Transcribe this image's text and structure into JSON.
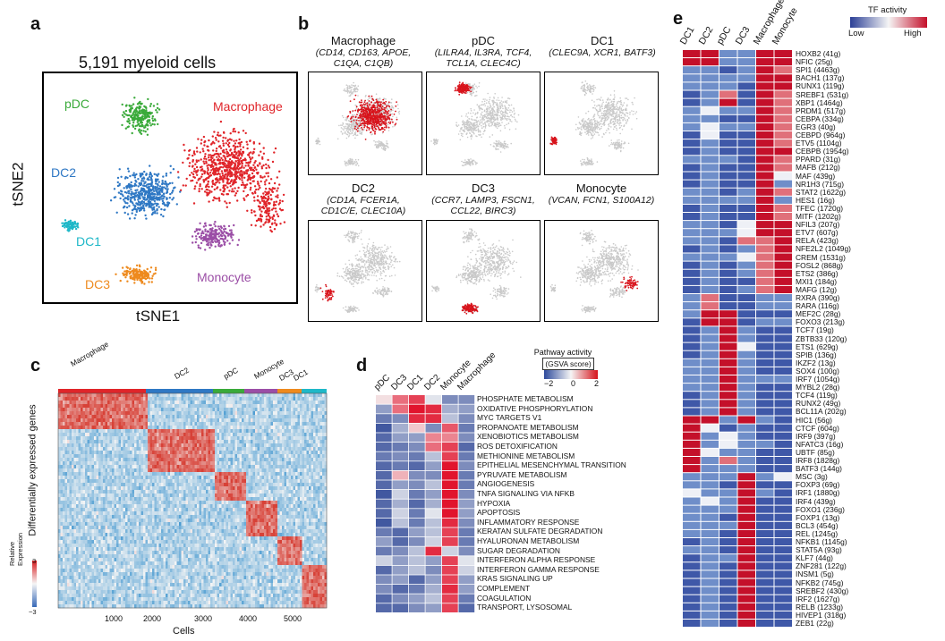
{
  "panel_labels": {
    "a": "a",
    "b": "b",
    "c": "c",
    "d": "d",
    "e": "e"
  },
  "panel_a": {
    "title": "5,191 myeloid cells",
    "xlabel": "tSNE1",
    "ylabel": "tSNE2",
    "clusters": [
      {
        "name": "pDC",
        "color": "#3aaa3a"
      },
      {
        "name": "Macrophage",
        "color": "#e0252a"
      },
      {
        "name": "DC2",
        "color": "#2f78c4"
      },
      {
        "name": "DC1",
        "color": "#1fb8c8"
      },
      {
        "name": "DC3",
        "color": "#ee8a1e"
      },
      {
        "name": "Monocyte",
        "color": "#9b4ea6"
      }
    ]
  },
  "panel_b": {
    "markers": [
      {
        "title": "Macrophage",
        "genes_line1": "(CD14, CD163, APOE,",
        "genes_line2": "C1QA, C1QB)"
      },
      {
        "title": "pDC",
        "genes_line1": "(LILRA4, IL3RA, TCF4,",
        "genes_line2": "TCL1A, CLEC4C)"
      },
      {
        "title": "DC1",
        "genes_line1": "(CLEC9A, XCR1, BATF3)",
        "genes_line2": ""
      },
      {
        "title": "DC2",
        "genes_line1": "(CD1A, FCER1A,",
        "genes_line2": "CD1C/E, CLEC10A)"
      },
      {
        "title": "DC3",
        "genes_line1": "(CCR7, LAMP3, FSCN1,",
        "genes_line2": "CCL22, BIRC3)"
      },
      {
        "title": "Monocyte",
        "genes_line1": "(VCAN, FCN1, S100A12)",
        "genes_line2": ""
      }
    ]
  },
  "panel_c": {
    "clusters": [
      {
        "name": "Macrophage",
        "color": "#e0252a"
      },
      {
        "name": "DC2",
        "color": "#2f78c4"
      },
      {
        "name": "pDC",
        "color": "#3aaa3a"
      },
      {
        "name": "Monocyte",
        "color": "#9b4ea6"
      },
      {
        "name": "DC3",
        "color": "#ee8a1e"
      },
      {
        "name": "DC1",
        "color": "#1fb8c8"
      }
    ],
    "ylabel": "Differentially expressed genes",
    "xlabel": "Cells",
    "x_ticks": [
      "1000",
      "2000",
      "3000",
      "4000",
      "5000"
    ],
    "legend_title_1": "Relative",
    "legend_title_2": "Expression",
    "legend_max": "3",
    "legend_min": "−3"
  },
  "panel_d": {
    "legend_title": "Pathway activity",
    "legend_subtitle": "(GSVA score)",
    "legend_ticks": [
      "−2",
      "0",
      "2"
    ],
    "columns": [
      "pDC",
      "DC3",
      "DC1",
      "DC2",
      "Monocyte",
      "Macrophage"
    ],
    "pathways": [
      "PHOSPHATE METABOLISM",
      "OXIDATIVE PHOSPHORYLATION",
      "MYC TARGETS V1",
      "PROPANOATE METABOLISM",
      "XENOBIOTICS METABOLISM",
      "ROS DETOXIFICATION",
      "METHIONINE METABOLISM",
      "EPITHELIAL MESENCHYMAL TRANSITION",
      "PYRUVATE METABOLISM",
      "ANGIOGENESIS",
      "TNFA SIGNALING VIA NFKB",
      "HYPOXIA",
      "APOPTOSIS",
      "INFLAMMATORY RESPONSE",
      "KERATAN SULFATE DEGRADATION",
      "HYALURONAN METABOLISM",
      "SUGAR DEGRADATION",
      "INTERFERON ALPHA RESPONSE",
      "INTERFERON GAMMA RESPONSE",
      "KRAS SIGNALING UP",
      "COMPLEMENT",
      "COAGULATION",
      "TRANSPORT, LYSOSOMAL"
    ],
    "matrix": [
      [
        0.2,
        1.2,
        1.6,
        -0.2,
        -1.2,
        -1.2
      ],
      [
        -1.0,
        1.2,
        2.0,
        1.8,
        -0.8,
        -1.0
      ],
      [
        -1.4,
        -1.2,
        1.8,
        1.8,
        -0.6,
        -1.2
      ],
      [
        -1.8,
        -0.8,
        0.4,
        -1.2,
        1.4,
        -1.4
      ],
      [
        -1.6,
        -1.0,
        -1.0,
        1.0,
        1.0,
        -1.2
      ],
      [
        -1.6,
        -1.4,
        -1.2,
        1.2,
        1.6,
        -1.6
      ],
      [
        -1.4,
        -1.2,
        -1.4,
        -0.6,
        1.6,
        -1.4
      ],
      [
        -1.6,
        -1.4,
        -1.6,
        -1.0,
        2.0,
        -1.2
      ],
      [
        -1.6,
        0.6,
        -1.2,
        -1.2,
        2.0,
        -1.4
      ],
      [
        -1.6,
        -1.0,
        -1.2,
        -0.6,
        2.0,
        -1.4
      ],
      [
        -1.8,
        -0.4,
        -1.4,
        -1.0,
        2.0,
        -1.2
      ],
      [
        -1.6,
        -0.8,
        -1.6,
        -0.8,
        2.0,
        -1.0
      ],
      [
        -1.6,
        -0.4,
        -1.4,
        -0.2,
        2.0,
        -1.0
      ],
      [
        -1.8,
        -0.6,
        -1.4,
        -0.6,
        1.8,
        -1.2
      ],
      [
        -1.4,
        -1.6,
        -1.0,
        -0.6,
        1.6,
        -1.4
      ],
      [
        -1.0,
        -1.6,
        -1.2,
        -0.4,
        1.6,
        -1.4
      ],
      [
        -1.4,
        -1.2,
        -0.6,
        1.8,
        -0.4,
        -1.2
      ],
      [
        -0.4,
        -1.0,
        -0.6,
        -1.0,
        1.6,
        -0.2
      ],
      [
        -1.6,
        -1.0,
        -0.6,
        -1.2,
        1.6,
        -0.4
      ],
      [
        -1.2,
        -1.0,
        -1.6,
        -1.0,
        1.6,
        -1.0
      ],
      [
        -1.2,
        -1.6,
        -1.4,
        -0.8,
        1.8,
        -1.0
      ],
      [
        -1.6,
        -1.2,
        -1.0,
        -0.6,
        1.6,
        -1.4
      ],
      [
        -1.6,
        -1.6,
        -1.2,
        -1.0,
        1.6,
        -1.6
      ]
    ]
  },
  "panel_e": {
    "legend_title": "TF activity",
    "legend_low": "Low",
    "legend_high": "High",
    "columns": [
      "DC1",
      "DC2",
      "pDC",
      "DC3",
      "Macrophage",
      "Monocyte"
    ],
    "regulons": [
      "HOXB2 (41g)",
      "NFIC (25g)",
      "SPI1 (4463g)",
      "BACH1 (137g)",
      "RUNX1 (119g)",
      "SREBF1 (531g)",
      "XBP1 (1464g)",
      "PRDM1 (517g)",
      "CEBPA (334g)",
      "EGR3 (40g)",
      "CEBPD (964g)",
      "ETV5 (1104g)",
      "CEBPB (1954g)",
      "PPARD (31g)",
      "MAFB (212g)",
      "MAF (439g)",
      "NR1H3 (715g)",
      "STAT2 (1622g)",
      "HES1 (16g)",
      "TFEC (1720g)",
      "MITF (1202g)",
      "NFIL3 (207g)",
      "ETV7 (607g)",
      "RELA (423g)",
      "NFE2L2 (1049g)",
      "CREM (1531g)",
      "FOSL2 (868g)",
      "ETS2 (386g)",
      "MXI1 (184g)",
      "MAFG (12g)",
      "RXRA (390g)",
      "RARA (116g)",
      "MEF2C (28g)",
      "FOXO3 (213g)",
      "TCF7 (19g)",
      "ZBTB33 (120g)",
      "ETS1 (629g)",
      "SPIB (136g)",
      "IKZF2 (13g)",
      "SOX4 (100g)",
      "IRF7 (1054g)",
      "MYBL2 (28g)",
      "TCF4 (119g)",
      "RUNX2 (49g)",
      "BCL11A (202g)",
      "HIC1 (56g)",
      "CTCF (604g)",
      "IRF9 (397g)",
      "NFATC3 (16g)",
      "UBTF (85g)",
      "IRF8 (1828g)",
      "BATF3 (144g)",
      "MSC (3g)",
      "FOXP3 (69g)",
      "IRF1 (1880g)",
      "IRF4 (439g)",
      "FOXO1 (236g)",
      "FOXP1 (13g)",
      "BCL3 (454g)",
      "REL (1245g)",
      "NFKB1 (1145g)",
      "STAT5A (93g)",
      "KLF7 (44g)",
      "ZNF281 (122g)",
      "INSM1 (5g)",
      "NFKB2 (745g)",
      "SREBF2 (430g)",
      "IRF2 (1627g)",
      "RELB (1233g)",
      "HIVEP1 (318g)",
      "ZEB1 (22g)"
    ],
    "matrix": [
      [
        2,
        2,
        -1,
        -1,
        2,
        2
      ],
      [
        2,
        2,
        -1,
        -1,
        2,
        2
      ],
      [
        -1,
        -1,
        -2,
        -1,
        2,
        1
      ],
      [
        -1,
        -1,
        -1,
        -1,
        2,
        2
      ],
      [
        -1,
        -1,
        -1,
        -2,
        2,
        2
      ],
      [
        -2,
        -1,
        1,
        -2,
        2,
        1
      ],
      [
        -2,
        -1,
        2,
        -2,
        2,
        1
      ],
      [
        -1,
        0,
        -1,
        -1,
        2,
        1
      ],
      [
        -1,
        -1,
        -2,
        -2,
        2,
        1
      ],
      [
        -1,
        0,
        -1,
        -1,
        2,
        1
      ],
      [
        -2,
        0,
        -2,
        -2,
        2,
        1
      ],
      [
        -2,
        -1,
        -2,
        -2,
        2,
        1
      ],
      [
        -2,
        -1,
        -2,
        -2,
        2,
        2
      ],
      [
        -1,
        -1,
        -1,
        -2,
        2,
        1
      ],
      [
        -2,
        -1,
        -2,
        -2,
        2,
        1
      ],
      [
        -2,
        -1,
        -2,
        -2,
        2,
        0
      ],
      [
        -2,
        -1,
        -2,
        -2,
        2,
        -1
      ],
      [
        -1,
        -1,
        -2,
        -1,
        2,
        1
      ],
      [
        -1,
        -1,
        -1,
        -1,
        2,
        -1
      ],
      [
        -2,
        -1,
        -2,
        -2,
        2,
        1
      ],
      [
        -2,
        -1,
        -2,
        -2,
        2,
        1
      ],
      [
        -1,
        -1,
        -2,
        0,
        2,
        2
      ],
      [
        -1,
        -1,
        -1,
        0,
        2,
        2
      ],
      [
        -1,
        -1,
        -2,
        1,
        1,
        2
      ],
      [
        -2,
        -1,
        -2,
        -1,
        1,
        2
      ],
      [
        -1,
        -1,
        -1,
        0,
        1,
        2
      ],
      [
        -2,
        -1,
        -2,
        -1,
        1,
        2
      ],
      [
        -2,
        -1,
        -2,
        -1,
        1,
        2
      ],
      [
        -2,
        -1,
        -2,
        -2,
        1,
        2
      ],
      [
        -2,
        -1,
        -2,
        -1,
        1,
        2
      ],
      [
        -1,
        1,
        -2,
        -2,
        -1,
        -1
      ],
      [
        -1,
        1,
        -2,
        -2,
        -1,
        -1
      ],
      [
        -1,
        2,
        2,
        -2,
        -2,
        -2
      ],
      [
        -2,
        2,
        2,
        -2,
        -1,
        -1
      ],
      [
        -2,
        -1,
        2,
        -1,
        -2,
        -2
      ],
      [
        -2,
        -1,
        2,
        -1,
        -2,
        -2
      ],
      [
        -2,
        -1,
        2,
        0,
        -2,
        -2
      ],
      [
        -2,
        -1,
        2,
        -1,
        -2,
        -2
      ],
      [
        -1,
        -1,
        2,
        -1,
        -2,
        -2
      ],
      [
        -1,
        -1,
        2,
        -1,
        -2,
        -2
      ],
      [
        -1,
        -1,
        2,
        -1,
        -1,
        -1
      ],
      [
        -1,
        -1,
        2,
        -1,
        -2,
        -2
      ],
      [
        -2,
        -1,
        2,
        -1,
        -2,
        -2
      ],
      [
        -2,
        -1,
        2,
        -1,
        -2,
        -2
      ],
      [
        -2,
        -1,
        2,
        -1,
        -2,
        -2
      ],
      [
        2,
        2,
        -1,
        2,
        -1,
        -2
      ],
      [
        2,
        0,
        -2,
        -1,
        -2,
        -2
      ],
      [
        2,
        -1,
        0,
        -1,
        -2,
        -2
      ],
      [
        2,
        -1,
        0,
        -1,
        -1,
        -2
      ],
      [
        2,
        0,
        -1,
        -1,
        -2,
        -2
      ],
      [
        2,
        -1,
        1,
        -1,
        -2,
        -2
      ],
      [
        2,
        -1,
        -1,
        -1,
        -2,
        -2
      ],
      [
        -1,
        -1,
        -1,
        2,
        -1,
        0
      ],
      [
        -1,
        -1,
        -2,
        2,
        -2,
        -2
      ],
      [
        0,
        -1,
        -1,
        2,
        -1,
        -2
      ],
      [
        -1,
        0,
        -1,
        2,
        -2,
        -2
      ],
      [
        -1,
        -1,
        -1,
        2,
        -2,
        -2
      ],
      [
        -1,
        -1,
        -2,
        2,
        -2,
        -2
      ],
      [
        -1,
        -1,
        -1,
        2,
        -2,
        -2
      ],
      [
        -1,
        -1,
        -2,
        2,
        -2,
        -2
      ],
      [
        -2,
        -1,
        -2,
        2,
        -2,
        -2
      ],
      [
        -1,
        -1,
        -2,
        2,
        -2,
        -2
      ],
      [
        -2,
        -1,
        -1,
        2,
        -2,
        -2
      ],
      [
        -2,
        -1,
        -2,
        2,
        -2,
        -2
      ],
      [
        -2,
        -1,
        -2,
        2,
        -2,
        -2
      ],
      [
        -2,
        -1,
        -2,
        2,
        -2,
        -2
      ],
      [
        -2,
        -1,
        -2,
        2,
        -2,
        -2
      ],
      [
        -2,
        -1,
        -2,
        2,
        -2,
        -2
      ],
      [
        -2,
        -1,
        -2,
        2,
        -2,
        -2
      ],
      [
        -2,
        -1,
        -2,
        2,
        -2,
        -2
      ],
      [
        -2,
        -1,
        -2,
        2,
        -2,
        -2
      ]
    ]
  }
}
